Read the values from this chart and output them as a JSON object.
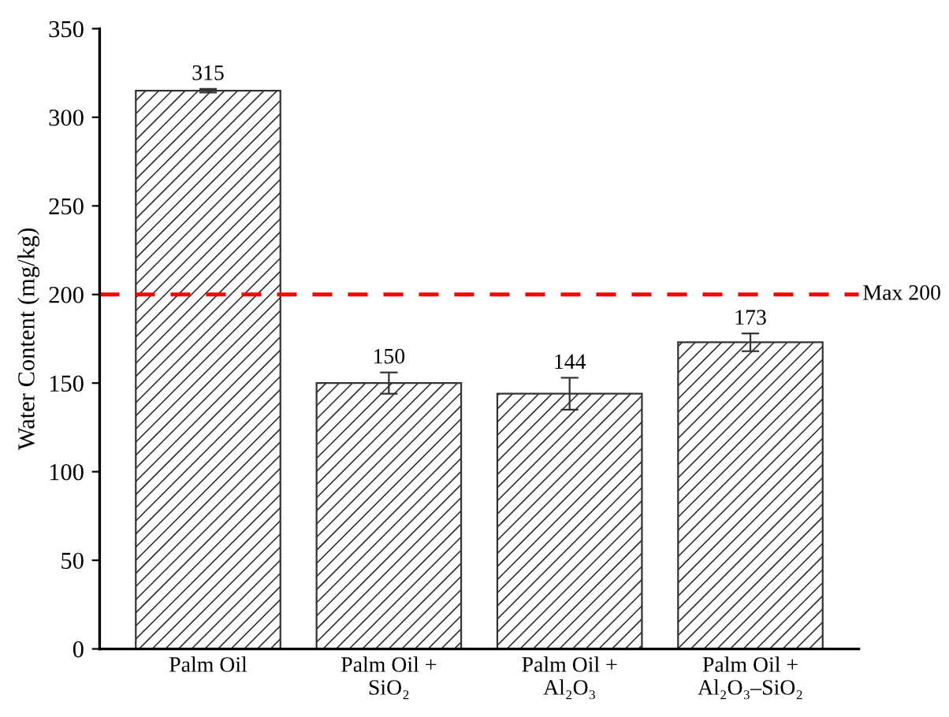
{
  "chart_data": {
    "type": "bar",
    "ylabel": "Water Content (mg/kg)",
    "categories": [
      "Palm Oil",
      "Palm Oil +\nSiO₂",
      "Palm Oil +\nAl₂O₃",
      "Palm Oil +\nAl₂O₃–SiO₂"
    ],
    "values": [
      315,
      150,
      144,
      173
    ],
    "errors": [
      1,
      6,
      9,
      5
    ],
    "color": "#333333",
    "ylim": [
      0,
      350
    ],
    "yticks": [
      0,
      50,
      100,
      150,
      200,
      250,
      300,
      350
    ],
    "ref_lines": [
      {
        "axis": "y",
        "value": 200,
        "label": "Max 200",
        "color": "#ff0000",
        "line_style": "dashed"
      }
    ],
    "data_labels": true,
    "grid": false,
    "legend": false
  }
}
